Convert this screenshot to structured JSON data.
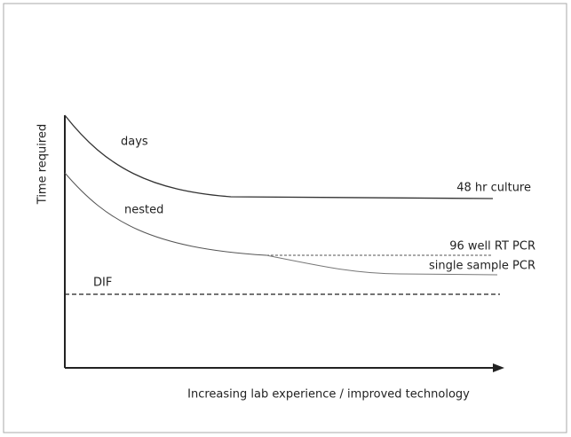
{
  "axes": {
    "y_label": "Time required",
    "x_label": "Increasing lab experience / improved technology"
  },
  "curves": [
    {
      "label": "days",
      "end_label": "48 hr culture"
    },
    {
      "label": "nested",
      "end_label": "96 well RT PCR"
    },
    {
      "end_label": "single sample PCR"
    },
    {
      "label": "DIF"
    }
  ]
}
